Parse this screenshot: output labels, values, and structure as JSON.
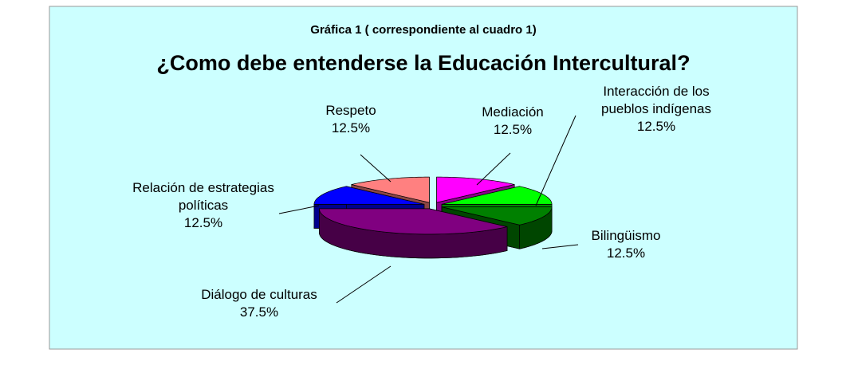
{
  "chart_data": {
    "type": "pie",
    "title": "Gráfica 1 ( correspondiente al cuadro 1)",
    "subtitle": "¿Como debe entenderse la Educación Intercultural?",
    "categories": [
      "Mediación",
      "Interacción de los pueblos indígenas",
      "Bilingüismo",
      "Diálogo de culturas",
      "Relación de estrategias políticas",
      "Respeto"
    ],
    "values": [
      12.5,
      12.5,
      12.5,
      37.5,
      12.5,
      12.5
    ],
    "value_labels": [
      "12.5%",
      "12.5%",
      "12.5%",
      "37.5%",
      "12.5%",
      "12.5%"
    ],
    "colors": [
      "#ff00ff",
      "#00ff00",
      "#008000",
      "#800080",
      "#0000ff",
      "#ff8080"
    ]
  }
}
